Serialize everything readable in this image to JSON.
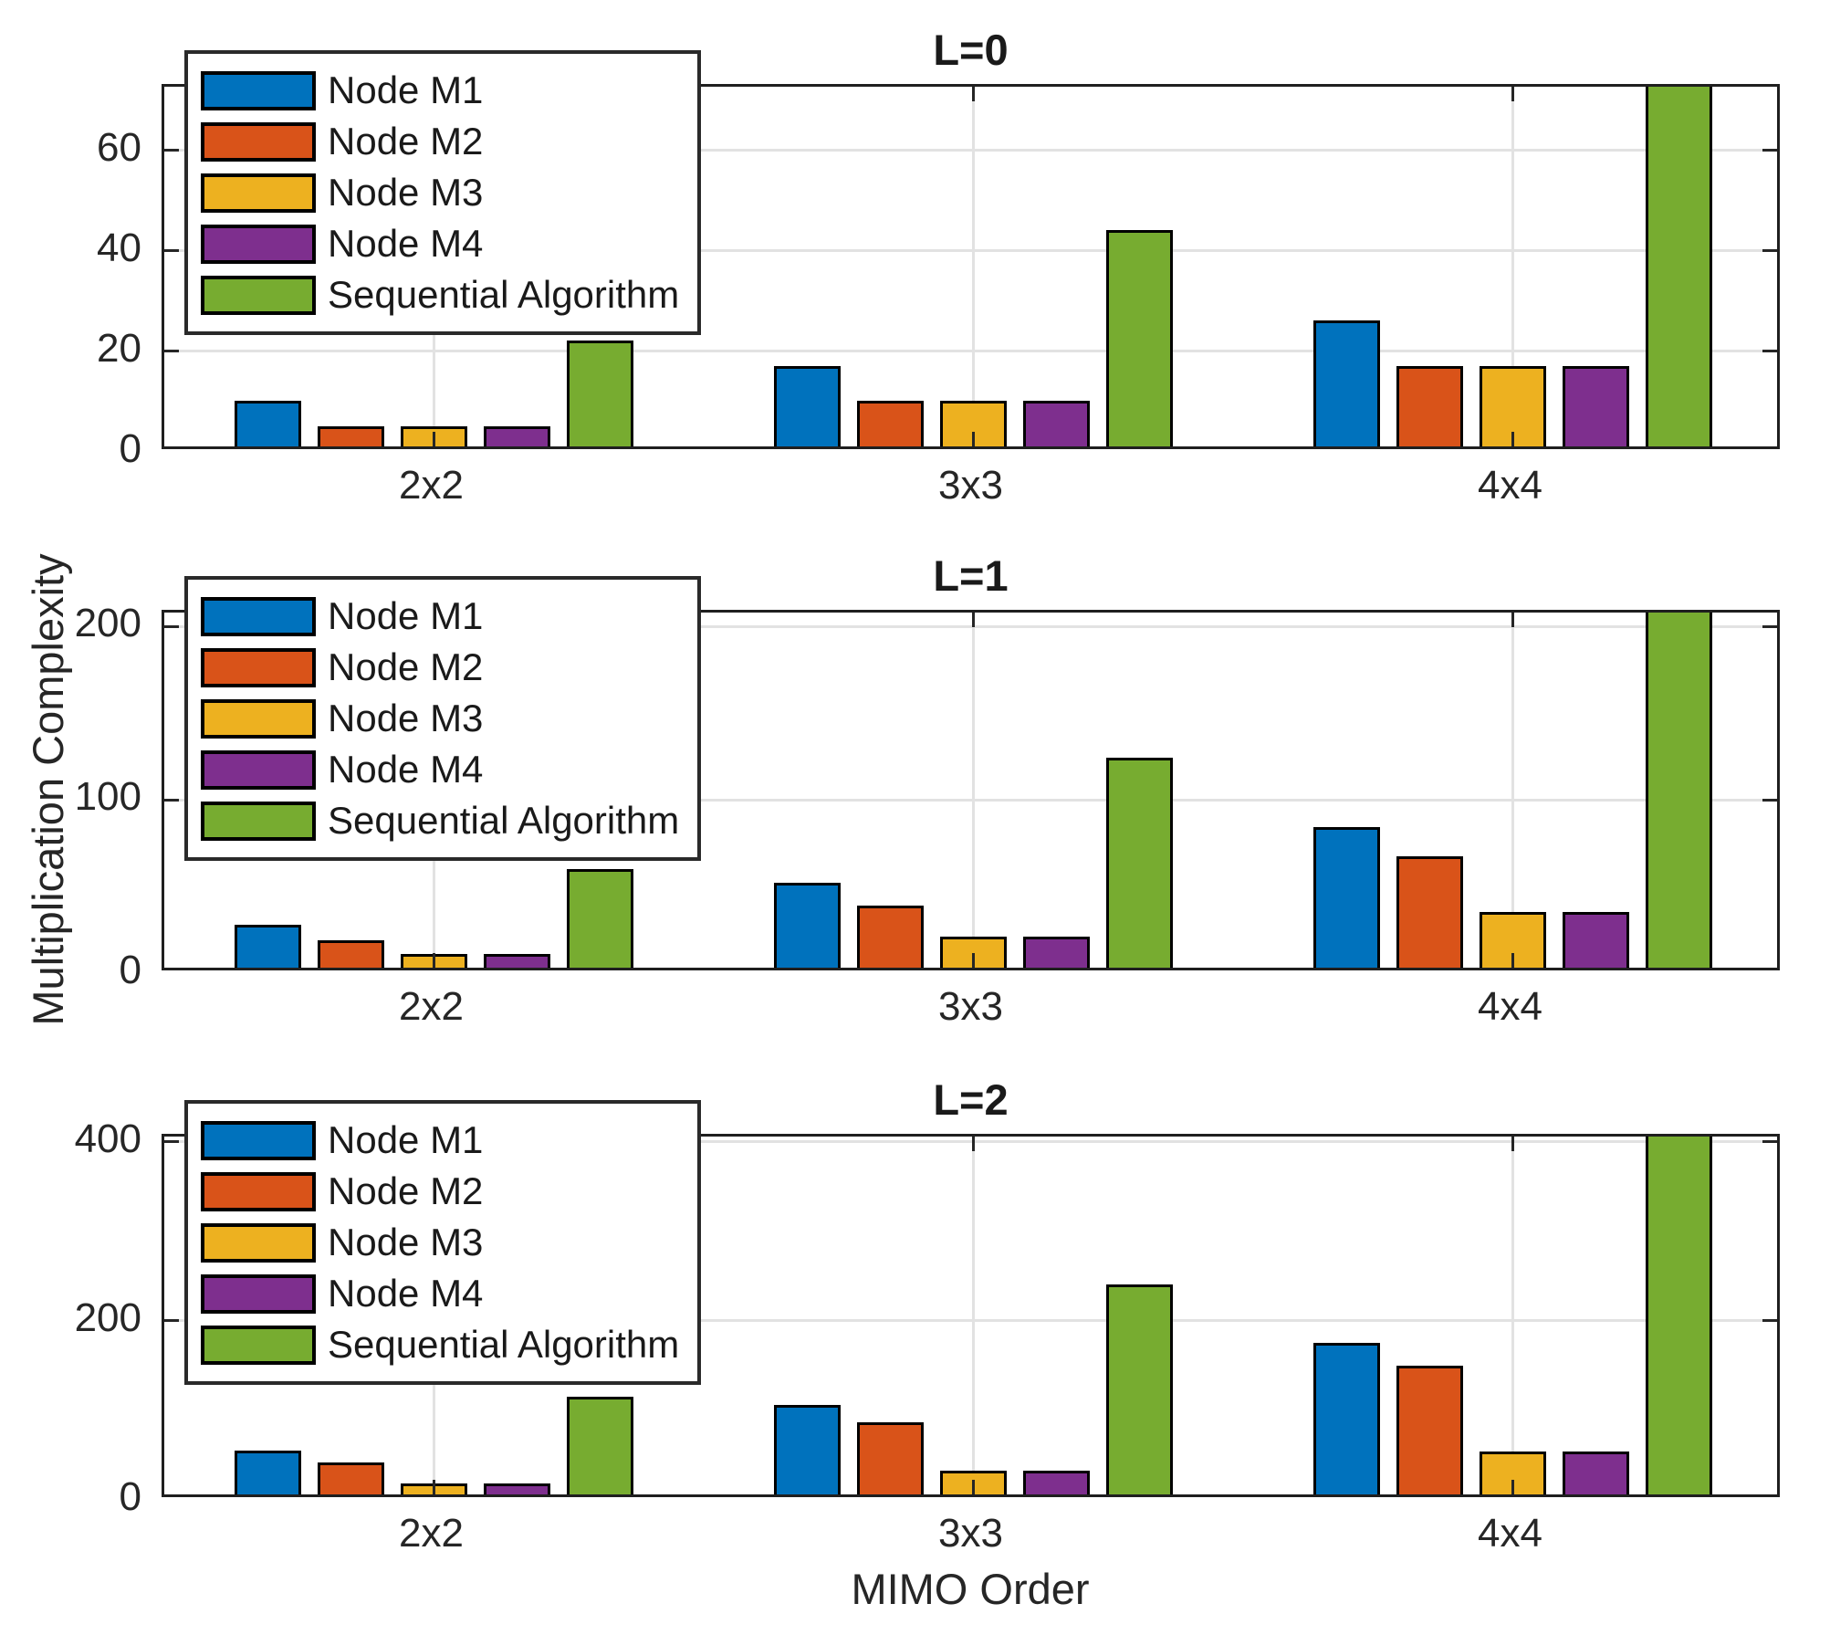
{
  "figure": {
    "ylabel": "Multiplication Complexity",
    "xlabel": "MIMO Order",
    "background": "#ffffff",
    "axis_color": "#262626",
    "grid_color": "#e2e2e2",
    "legend_labels": [
      "Node M1",
      "Node M2",
      "Node M3",
      "Node M4",
      "Sequential Algorithm"
    ],
    "series_colors": [
      "#0072BD",
      "#D95319",
      "#EDB120",
      "#7E2F8E",
      "#77AC30"
    ]
  },
  "chart_data": [
    {
      "type": "bar",
      "title": "L=0",
      "categories": [
        "2x2",
        "3x3",
        "4x4"
      ],
      "series": [
        {
          "name": "Node M1",
          "color": "#0072BD",
          "values": [
            9,
            16,
            25
          ]
        },
        {
          "name": "Node M2",
          "color": "#D95319",
          "values": [
            4,
            9,
            16
          ]
        },
        {
          "name": "Node M3",
          "color": "#EDB120",
          "values": [
            4,
            9,
            16
          ]
        },
        {
          "name": "Node M4",
          "color": "#7E2F8E",
          "values": [
            4,
            9,
            16
          ]
        },
        {
          "name": "Sequential Algorithm",
          "color": "#77AC30",
          "values": [
            21,
            43,
            73
          ]
        }
      ],
      "yticks": [
        0,
        20,
        40,
        60
      ],
      "ylim": [
        0,
        72.7
      ],
      "grid": true,
      "legend_position": "top-left",
      "note": "tallest Sequential Algorithm bar (73) is clipped at axis top"
    },
    {
      "type": "bar",
      "title": "L=1",
      "categories": [
        "2x2",
        "3x3",
        "4x4"
      ],
      "series": [
        {
          "name": "Node M1",
          "color": "#0072BD",
          "values": [
            25,
            49,
            81
          ]
        },
        {
          "name": "Node M2",
          "color": "#D95319",
          "values": [
            16,
            36,
            64
          ]
        },
        {
          "name": "Node M3",
          "color": "#EDB120",
          "values": [
            8,
            18,
            32
          ]
        },
        {
          "name": "Node M4",
          "color": "#7E2F8E",
          "values": [
            8,
            18,
            32
          ]
        },
        {
          "name": "Sequential Algorithm",
          "color": "#77AC30",
          "values": [
            57,
            121,
            209
          ]
        }
      ],
      "yticks": [
        0,
        100,
        200
      ],
      "ylim": [
        0,
        207.9
      ],
      "grid": true,
      "legend_position": "top-left",
      "note": "tallest Sequential Algorithm bar (209) is clipped at axis top"
    },
    {
      "type": "bar",
      "title": "L=2",
      "categories": [
        "2x2",
        "3x3",
        "4x4"
      ],
      "series": [
        {
          "name": "Node M1",
          "color": "#0072BD",
          "values": [
            49,
            100,
            169
          ]
        },
        {
          "name": "Node M2",
          "color": "#D95319",
          "values": [
            36,
            81,
            144
          ]
        },
        {
          "name": "Node M3",
          "color": "#EDB120",
          "values": [
            12,
            27,
            48
          ]
        },
        {
          "name": "Node M4",
          "color": "#7E2F8E",
          "values": [
            12,
            27,
            48
          ]
        },
        {
          "name": "Sequential Algorithm",
          "color": "#77AC30",
          "values": [
            109,
            235,
            409
          ]
        }
      ],
      "yticks": [
        0,
        200,
        400
      ],
      "ylim": [
        0,
        406
      ],
      "grid": true,
      "legend_position": "top-left",
      "note": "tallest Sequential Algorithm bar (409) is clipped at axis top"
    }
  ]
}
